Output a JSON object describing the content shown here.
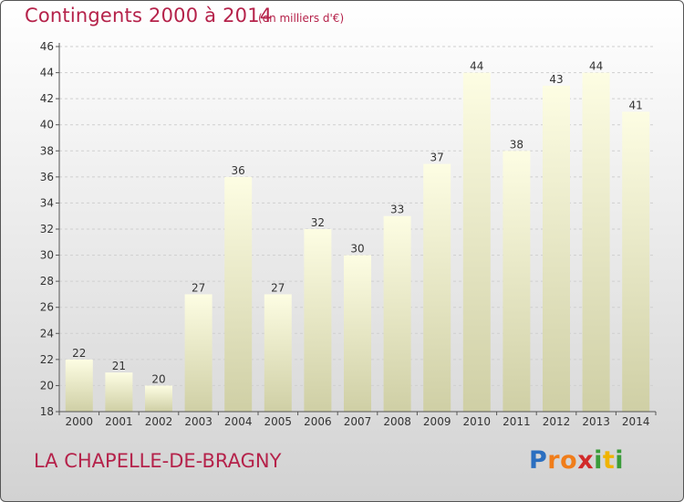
{
  "title": "Contingents 2000 à 2014",
  "subtitle": "(en milliers d'€)",
  "location": "LA CHAPELLE-DE-BRAGNY",
  "logo": {
    "letters": [
      "P",
      "r",
      "o",
      "x",
      "i",
      "t",
      "i"
    ],
    "colors": [
      "#2b6fc0",
      "#f07d1a",
      "#f07d1a",
      "#d12a2a",
      "#3a9c3a",
      "#f0b400",
      "#3a9c3a"
    ]
  },
  "colors": {
    "title": "#b5224a",
    "bar_top": "#fdfde3",
    "bar_bottom": "#cfcfa5"
  },
  "chart_data": {
    "type": "bar",
    "categories": [
      "2000",
      "2001",
      "2002",
      "2003",
      "2004",
      "2005",
      "2006",
      "2007",
      "2008",
      "2009",
      "2010",
      "2011",
      "2012",
      "2013",
      "2014"
    ],
    "values": [
      22,
      21,
      20,
      27,
      36,
      27,
      32,
      30,
      33,
      37,
      44,
      38,
      43,
      44,
      41
    ],
    "ylim": [
      18,
      46
    ],
    "yticks": [
      18,
      20,
      22,
      24,
      26,
      28,
      30,
      32,
      34,
      36,
      38,
      40,
      42,
      44,
      46
    ],
    "grid": true,
    "xlabel": "",
    "ylabel": ""
  }
}
